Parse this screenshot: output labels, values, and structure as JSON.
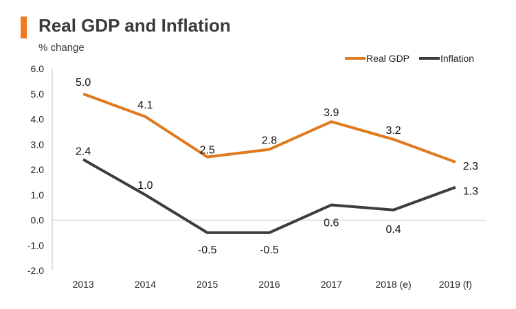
{
  "chart_data": {
    "type": "line",
    "title": "Real GDP and Inflation",
    "ylabel": "% change",
    "xlabel": "",
    "categories": [
      "2013",
      "2014",
      "2015",
      "2016",
      "2017",
      "2018 (e)",
      "2019 (f)"
    ],
    "ylim": [
      -2.0,
      6.0
    ],
    "yticks": [
      "6.0",
      "5.0",
      "4.0",
      "3.0",
      "2.0",
      "1.0",
      "0.0",
      "-1.0",
      "-2.0"
    ],
    "grid": false,
    "legend_position": "top-right",
    "series": [
      {
        "name": "Real GDP",
        "color": "#e07a1f",
        "values": [
          5.0,
          4.1,
          2.5,
          2.8,
          3.9,
          3.2,
          2.3
        ],
        "labels": [
          "5.0",
          "4.1",
          "2.5",
          "2.8",
          "3.9",
          "3.2",
          "2.3"
        ]
      },
      {
        "name": "Inflation",
        "color": "#3d3d3d",
        "values": [
          2.4,
          1.0,
          -0.5,
          -0.5,
          0.6,
          0.4,
          1.3
        ],
        "labels": [
          "2.4",
          "1.0",
          "-0.5",
          "-0.5",
          "0.6",
          "0.4",
          "1.3"
        ]
      }
    ]
  },
  "colors": {
    "accent": "#f07a22",
    "title": "#3a3a3a",
    "axis": "#bfbfbf"
  }
}
